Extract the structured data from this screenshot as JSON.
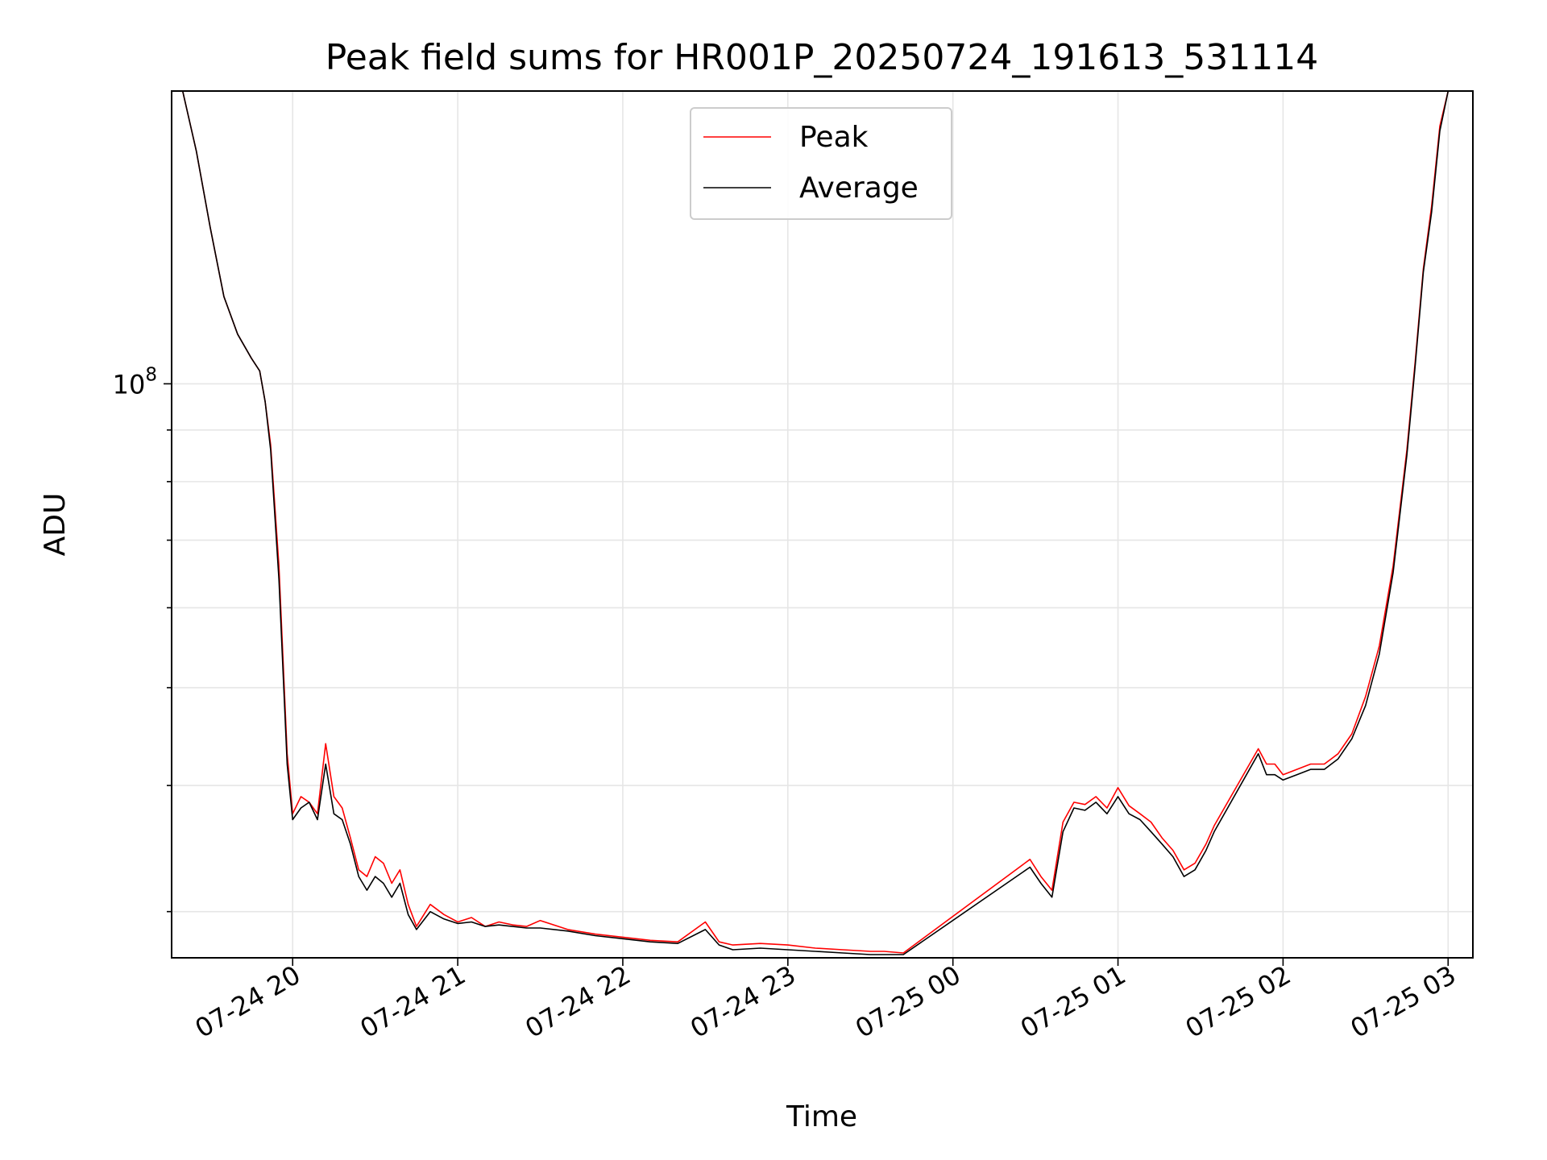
{
  "chart_data": {
    "type": "line",
    "title": "Peak field sums for HR001P_20250724_191613_531114",
    "xlabel": "Time",
    "ylabel": "ADU",
    "yscale": "log",
    "ylim": [
      27000000,
      195000000
    ],
    "xlim": [
      "2025-07-24 19:16",
      "2025-07-25 03:09"
    ],
    "grid": true,
    "legend": "upper-center",
    "x_ticks": [
      {
        "t": "2025-07-24 20:00",
        "label": "07-24 20"
      },
      {
        "t": "2025-07-24 21:00",
        "label": "07-24 21"
      },
      {
        "t": "2025-07-24 22:00",
        "label": "07-24 22"
      },
      {
        "t": "2025-07-24 23:00",
        "label": "07-24 23"
      },
      {
        "t": "2025-07-25 00:00",
        "label": "07-25 00"
      },
      {
        "t": "2025-07-25 01:00",
        "label": "07-25 01"
      },
      {
        "t": "2025-07-25 02:00",
        "label": "07-25 02"
      },
      {
        "t": "2025-07-25 03:00",
        "label": "07-25 03"
      }
    ],
    "y_major_ticks": [
      {
        "value": 100000000,
        "base": "10",
        "exp": "8"
      }
    ],
    "y_minor_ticks": [
      30000000,
      40000000,
      50000000,
      60000000,
      70000000,
      80000000,
      90000000,
      200000000
    ],
    "series": [
      {
        "name": "Peak",
        "color": "#ff0000",
        "x": [
          "2025-07-24 19:16",
          "2025-07-24 19:20",
          "2025-07-24 19:25",
          "2025-07-24 19:30",
          "2025-07-24 19:35",
          "2025-07-24 19:40",
          "2025-07-24 19:45",
          "2025-07-24 19:48",
          "2025-07-24 19:50",
          "2025-07-24 19:52",
          "2025-07-24 19:55",
          "2025-07-24 19:58",
          "2025-07-24 20:00",
          "2025-07-24 20:03",
          "2025-07-24 20:06",
          "2025-07-24 20:09",
          "2025-07-24 20:12",
          "2025-07-24 20:15",
          "2025-07-24 20:18",
          "2025-07-24 20:21",
          "2025-07-24 20:24",
          "2025-07-24 20:27",
          "2025-07-24 20:30",
          "2025-07-24 20:33",
          "2025-07-24 20:36",
          "2025-07-24 20:39",
          "2025-07-24 20:42",
          "2025-07-24 20:45",
          "2025-07-24 20:50",
          "2025-07-24 20:55",
          "2025-07-24 21:00",
          "2025-07-24 21:05",
          "2025-07-24 21:10",
          "2025-07-24 21:15",
          "2025-07-24 21:20",
          "2025-07-24 21:25",
          "2025-07-24 21:30",
          "2025-07-24 21:40",
          "2025-07-24 21:50",
          "2025-07-24 22:00",
          "2025-07-24 22:10",
          "2025-07-24 22:20",
          "2025-07-24 22:30",
          "2025-07-24 22:35",
          "2025-07-24 22:40",
          "2025-07-24 22:50",
          "2025-07-24 23:00",
          "2025-07-24 23:10",
          "2025-07-24 23:20",
          "2025-07-24 23:30",
          "2025-07-24 23:35",
          "2025-07-24 23:42",
          "2025-07-25 00:28",
          "2025-07-25 00:32",
          "2025-07-25 00:36",
          "2025-07-25 00:40",
          "2025-07-25 00:44",
          "2025-07-25 00:48",
          "2025-07-25 00:52",
          "2025-07-25 00:56",
          "2025-07-25 01:00",
          "2025-07-25 01:04",
          "2025-07-25 01:08",
          "2025-07-25 01:12",
          "2025-07-25 01:16",
          "2025-07-25 01:20",
          "2025-07-25 01:24",
          "2025-07-25 01:28",
          "2025-07-25 01:32",
          "2025-07-25 01:35",
          "2025-07-25 01:51",
          "2025-07-25 01:54",
          "2025-07-25 01:57",
          "2025-07-25 02:00",
          "2025-07-25 02:05",
          "2025-07-25 02:10",
          "2025-07-25 02:15",
          "2025-07-25 02:20",
          "2025-07-25 02:25",
          "2025-07-25 02:30",
          "2025-07-25 02:35",
          "2025-07-25 02:40",
          "2025-07-25 02:45",
          "2025-07-25 02:48",
          "2025-07-25 02:51",
          "2025-07-25 02:54",
          "2025-07-25 02:57",
          "2025-07-25 03:00"
        ],
        "y": [
          195000000,
          195000000,
          170000000,
          143000000,
          122000000,
          112000000,
          106000000,
          103000000,
          96000000,
          87000000,
          66000000,
          43000000,
          37500000,
          39000000,
          38500000,
          37500000,
          44000000,
          39000000,
          38000000,
          35500000,
          33000000,
          32500000,
          34000000,
          33500000,
          32000000,
          33000000,
          30500000,
          29000000,
          30500000,
          29800000,
          29300000,
          29600000,
          29000000,
          29300000,
          29100000,
          29000000,
          29400000,
          28800000,
          28500000,
          28300000,
          28100000,
          28000000,
          29300000,
          28000000,
          27800000,
          27900000,
          27800000,
          27600000,
          27500000,
          27400000,
          27400000,
          27300000,
          33800000,
          32500000,
          31500000,
          36800000,
          38500000,
          38300000,
          39000000,
          38000000,
          39800000,
          38200000,
          37500000,
          36800000,
          35500000,
          34500000,
          33000000,
          33500000,
          35000000,
          36500000,
          43500000,
          42000000,
          42000000,
          41000000,
          41500000,
          42000000,
          42000000,
          43000000,
          45000000,
          49000000,
          55000000,
          66000000,
          86000000,
          105000000,
          130000000,
          150000000,
          180000000,
          195000000
        ]
      },
      {
        "name": "Average",
        "color": "#000000",
        "x": [
          "2025-07-24 19:16",
          "2025-07-24 19:20",
          "2025-07-24 19:25",
          "2025-07-24 19:30",
          "2025-07-24 19:35",
          "2025-07-24 19:40",
          "2025-07-24 19:45",
          "2025-07-24 19:48",
          "2025-07-24 19:50",
          "2025-07-24 19:52",
          "2025-07-24 19:55",
          "2025-07-24 19:58",
          "2025-07-24 20:00",
          "2025-07-24 20:03",
          "2025-07-24 20:06",
          "2025-07-24 20:09",
          "2025-07-24 20:12",
          "2025-07-24 20:15",
          "2025-07-24 20:18",
          "2025-07-24 20:21",
          "2025-07-24 20:24",
          "2025-07-24 20:27",
          "2025-07-24 20:30",
          "2025-07-24 20:33",
          "2025-07-24 20:36",
          "2025-07-24 20:39",
          "2025-07-24 20:42",
          "2025-07-24 20:45",
          "2025-07-24 20:50",
          "2025-07-24 20:55",
          "2025-07-24 21:00",
          "2025-07-24 21:05",
          "2025-07-24 21:10",
          "2025-07-24 21:15",
          "2025-07-24 21:20",
          "2025-07-24 21:25",
          "2025-07-24 21:30",
          "2025-07-24 21:40",
          "2025-07-24 21:50",
          "2025-07-24 22:00",
          "2025-07-24 22:10",
          "2025-07-24 22:20",
          "2025-07-24 22:30",
          "2025-07-24 22:35",
          "2025-07-24 22:40",
          "2025-07-24 22:50",
          "2025-07-24 23:00",
          "2025-07-24 23:10",
          "2025-07-24 23:20",
          "2025-07-24 23:30",
          "2025-07-24 23:35",
          "2025-07-24 23:42",
          "2025-07-25 00:28",
          "2025-07-25 00:32",
          "2025-07-25 00:36",
          "2025-07-25 00:40",
          "2025-07-25 00:44",
          "2025-07-25 00:48",
          "2025-07-25 00:52",
          "2025-07-25 00:56",
          "2025-07-25 01:00",
          "2025-07-25 01:04",
          "2025-07-25 01:08",
          "2025-07-25 01:12",
          "2025-07-25 01:16",
          "2025-07-25 01:20",
          "2025-07-25 01:24",
          "2025-07-25 01:28",
          "2025-07-25 01:32",
          "2025-07-25 01:35",
          "2025-07-25 01:51",
          "2025-07-25 01:54",
          "2025-07-25 01:57",
          "2025-07-25 02:00",
          "2025-07-25 02:05",
          "2025-07-25 02:10",
          "2025-07-25 02:15",
          "2025-07-25 02:20",
          "2025-07-25 02:25",
          "2025-07-25 02:30",
          "2025-07-25 02:35",
          "2025-07-25 02:40",
          "2025-07-25 02:45",
          "2025-07-25 02:48",
          "2025-07-25 02:51",
          "2025-07-25 02:54",
          "2025-07-25 02:57",
          "2025-07-25 03:00"
        ],
        "y": [
          195000000,
          195000000,
          170000000,
          143000000,
          122000000,
          112000000,
          106000000,
          103000000,
          96000000,
          86000000,
          64000000,
          42000000,
          37000000,
          38000000,
          38500000,
          37000000,
          42000000,
          37500000,
          37000000,
          35000000,
          32500000,
          31500000,
          32500000,
          32000000,
          31000000,
          32000000,
          29800000,
          28800000,
          30000000,
          29500000,
          29200000,
          29300000,
          29000000,
          29100000,
          29000000,
          28900000,
          28900000,
          28700000,
          28400000,
          28200000,
          28000000,
          27900000,
          28800000,
          27800000,
          27500000,
          27600000,
          27500000,
          27400000,
          27300000,
          27200000,
          27200000,
          27200000,
          33200000,
          32000000,
          31000000,
          36000000,
          38000000,
          37800000,
          38500000,
          37500000,
          39000000,
          37500000,
          37000000,
          36000000,
          35000000,
          34000000,
          32500000,
          33000000,
          34500000,
          36000000,
          43000000,
          41000000,
          41000000,
          40500000,
          41000000,
          41500000,
          41500000,
          42500000,
          44500000,
          48000000,
          54000000,
          65000000,
          85000000,
          104000000,
          129000000,
          148000000,
          178000000,
          195000000
        ]
      }
    ]
  }
}
